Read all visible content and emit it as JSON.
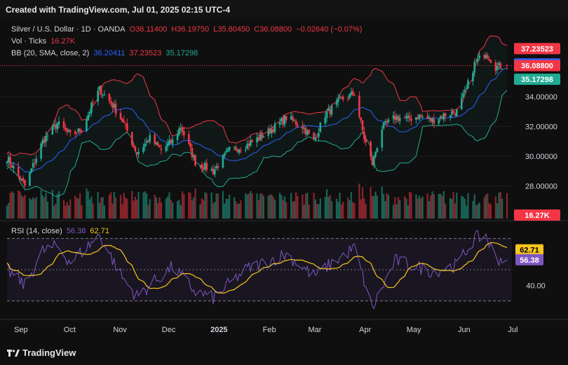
{
  "header": {
    "created": "Created with TradingView.com, Jul 01, 2025 02:15 UTC-4"
  },
  "legend": {
    "symbol": "Silver / U.S. Dollar · 1D · OANDA",
    "o": "O36.11400",
    "h": "H36.19750",
    "l": "L35.80450",
    "c": "C36.08800",
    "chg": "−0.02640 (−0.07%)",
    "vol_label": "Vol · Ticks",
    "vol_val": "16.27K",
    "bb_label": "BB (20, SMA, close, 2)",
    "bb_basis": "36.20411",
    "bb_upper": "37.23523",
    "bb_lower": "35.17298",
    "rsi_label": "RSI (14, close)",
    "rsi_val": "56.38",
    "rsi_ma": "62.71"
  },
  "footer": {
    "brand": "TradingView"
  },
  "colors": {
    "up": "#22ab94",
    "down": "#f23645",
    "basis": "#2962ff",
    "upper": "#f23645",
    "lower": "#22ab94",
    "rsi": "#7e57c2",
    "rsi_ma": "#f7c51d"
  },
  "chart_data": {
    "type": "candlestick",
    "price_range": [
      25.8,
      38.9
    ],
    "price_ticks": [
      "28.00000",
      "30.00000",
      "32.00000",
      "34.00000"
    ],
    "price_badges": [
      {
        "label": "37.23523",
        "value": 37.23523,
        "color": "#f23645"
      },
      {
        "label": "36.20411",
        "value": 36.20411,
        "color": "#2962ff"
      },
      {
        "label": "36.08800",
        "value": 36.088,
        "color": "#f23645"
      },
      {
        "label": "35.17298",
        "value": 35.17298,
        "color": "#22ab94"
      }
    ],
    "volume_badge": "16.27K",
    "rsi_range": [
      20,
      80
    ],
    "rsi_levels": [
      70,
      50,
      30
    ],
    "rsi_ticks": [
      "40.00"
    ],
    "rsi_badges": [
      {
        "label": "62.71",
        "value": 62.71,
        "color": "#f7c51d"
      },
      {
        "label": "56.38",
        "value": 56.38,
        "color": "#7e57c2"
      }
    ],
    "x_labels": [
      "Sep",
      "Oct",
      "Nov",
      "Dec",
      "2025",
      "Feb",
      "Mar",
      "Apr",
      "May",
      "Jun",
      "Jul"
    ],
    "close_anchors": [
      [
        "2024-08-26",
        29.9
      ],
      [
        "2024-09-06",
        28.0
      ],
      [
        "2024-09-17",
        31.0
      ],
      [
        "2024-09-26",
        32.2
      ],
      [
        "2024-10-04",
        31.4
      ],
      [
        "2024-10-11",
        31.8
      ],
      [
        "2024-10-18",
        33.6
      ],
      [
        "2024-10-22",
        34.5
      ],
      [
        "2024-10-29",
        33.6
      ],
      [
        "2024-11-05",
        32.4
      ],
      [
        "2024-11-14",
        30.2
      ],
      [
        "2024-11-22",
        31.2
      ],
      [
        "2024-11-29",
        30.4
      ],
      [
        "2024-12-06",
        31.0
      ],
      [
        "2024-12-11",
        32.0
      ],
      [
        "2024-12-20",
        29.6
      ],
      [
        "2024-12-31",
        29.0
      ],
      [
        "2025-01-10",
        30.4
      ],
      [
        "2025-01-20",
        30.7
      ],
      [
        "2025-01-31",
        31.4
      ],
      [
        "2025-02-10",
        32.2
      ],
      [
        "2025-02-14",
        32.6
      ],
      [
        "2025-02-24",
        32.0
      ],
      [
        "2025-03-03",
        31.0
      ],
      [
        "2025-03-10",
        32.8
      ],
      [
        "2025-03-20",
        33.8
      ],
      [
        "2025-03-28",
        34.2
      ],
      [
        "2025-04-03",
        31.2
      ],
      [
        "2025-04-08",
        29.5
      ],
      [
        "2025-04-14",
        31.9
      ],
      [
        "2025-04-22",
        32.6
      ],
      [
        "2025-04-30",
        32.5
      ],
      [
        "2025-05-07",
        32.7
      ],
      [
        "2025-05-15",
        32.4
      ],
      [
        "2025-05-23",
        32.8
      ],
      [
        "2025-05-30",
        33.0
      ],
      [
        "2025-06-05",
        34.5
      ],
      [
        "2025-06-10",
        36.2
      ],
      [
        "2025-06-17",
        37.0
      ],
      [
        "2025-06-23",
        36.0
      ],
      [
        "2025-06-30",
        36.088
      ]
    ],
    "rsi_anchors": [
      [
        "2024-08-26",
        50
      ],
      [
        "2024-09-06",
        40
      ],
      [
        "2024-09-17",
        62
      ],
      [
        "2024-09-26",
        65
      ],
      [
        "2024-10-04",
        55
      ],
      [
        "2024-10-22",
        72
      ],
      [
        "2024-11-05",
        45
      ],
      [
        "2024-11-14",
        33
      ],
      [
        "2024-12-06",
        52
      ],
      [
        "2024-12-20",
        36
      ],
      [
        "2024-12-31",
        32
      ],
      [
        "2025-01-20",
        50
      ],
      [
        "2025-02-14",
        60
      ],
      [
        "2025-03-03",
        46
      ],
      [
        "2025-03-28",
        64
      ],
      [
        "2025-04-08",
        25
      ],
      [
        "2025-04-22",
        56
      ],
      [
        "2025-05-15",
        49
      ],
      [
        "2025-05-30",
        53
      ],
      [
        "2025-06-10",
        70
      ],
      [
        "2025-06-17",
        72
      ],
      [
        "2025-06-23",
        57
      ],
      [
        "2025-06-30",
        56.38
      ]
    ],
    "volume_range": [
      0,
      42000
    ]
  }
}
